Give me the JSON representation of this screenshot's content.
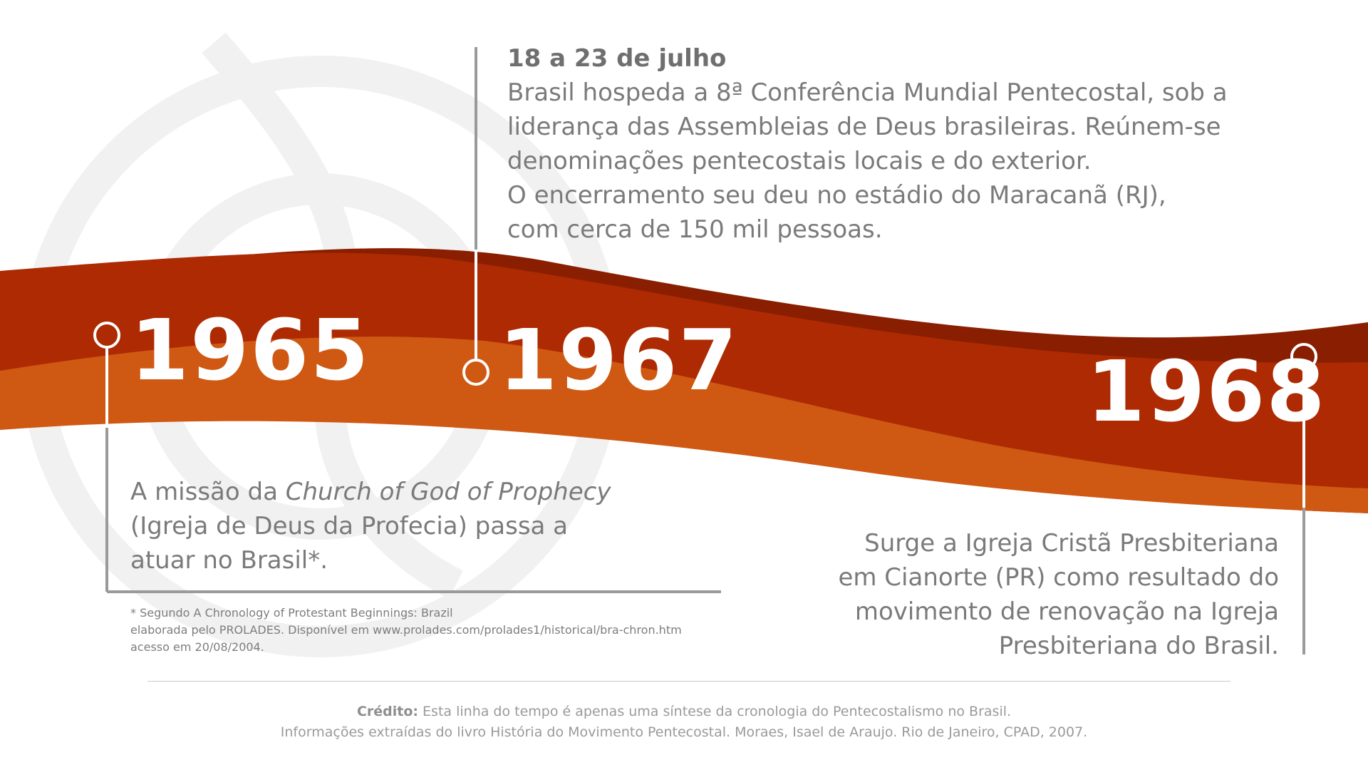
{
  "colors": {
    "band_dark": "#8a1e00",
    "band_red": "#ad2a02",
    "band_orange": "#cf5813",
    "text_gray": "#7a7a7a",
    "connector_gray": "#9a9a9a",
    "marker_white": "#ffffff",
    "watermark": "#efefef"
  },
  "timeline": {
    "events": [
      {
        "year": "1965",
        "text_lines": [
          "A missão da ",
          "(Igreja de Deus da Profecia) passa a",
          "atuar no Brasil*."
        ],
        "italic_name": "Church of God of Prophecy"
      },
      {
        "year": "1967",
        "date": "18 a 23 de julho",
        "text_lines": [
          "Brasil hospeda a 8ª Conferência Mundial Pentecostal, sob a",
          "liderança das Assembleias de Deus brasileiras. Reúnem-se",
          "denominações pentecostais locais e do exterior.",
          "O encerramento seu deu no estádio do Maracanã (RJ),",
          "com cerca de 150 mil pessoas."
        ]
      },
      {
        "year": "1968",
        "text_lines": [
          "Surge a Igreja Cristã Presbiteriana",
          "em Cianorte (PR) como resultado do",
          "movimento de renovação na Igreja",
          "Presbiteriana do Brasil."
        ]
      }
    ]
  },
  "footnote": {
    "lines": [
      "* Segundo A Chronology of Protestant Beginnings: Brazil",
      "elaborada pelo PROLADES. Disponível em www.prolades.com/prolades1/historical/bra-chron.htm",
      "acesso em 20/08/2004."
    ]
  },
  "credit": {
    "label": "Crédito:",
    "line1": " Esta linha do tempo é apenas uma síntese da cronologia do Pentecostalismo no Brasil.",
    "line2": "Informações extraídas do livro História do Movimento Pentecostal. Moraes, Isael de Araujo. Rio de Janeiro, CPAD, 2007."
  }
}
